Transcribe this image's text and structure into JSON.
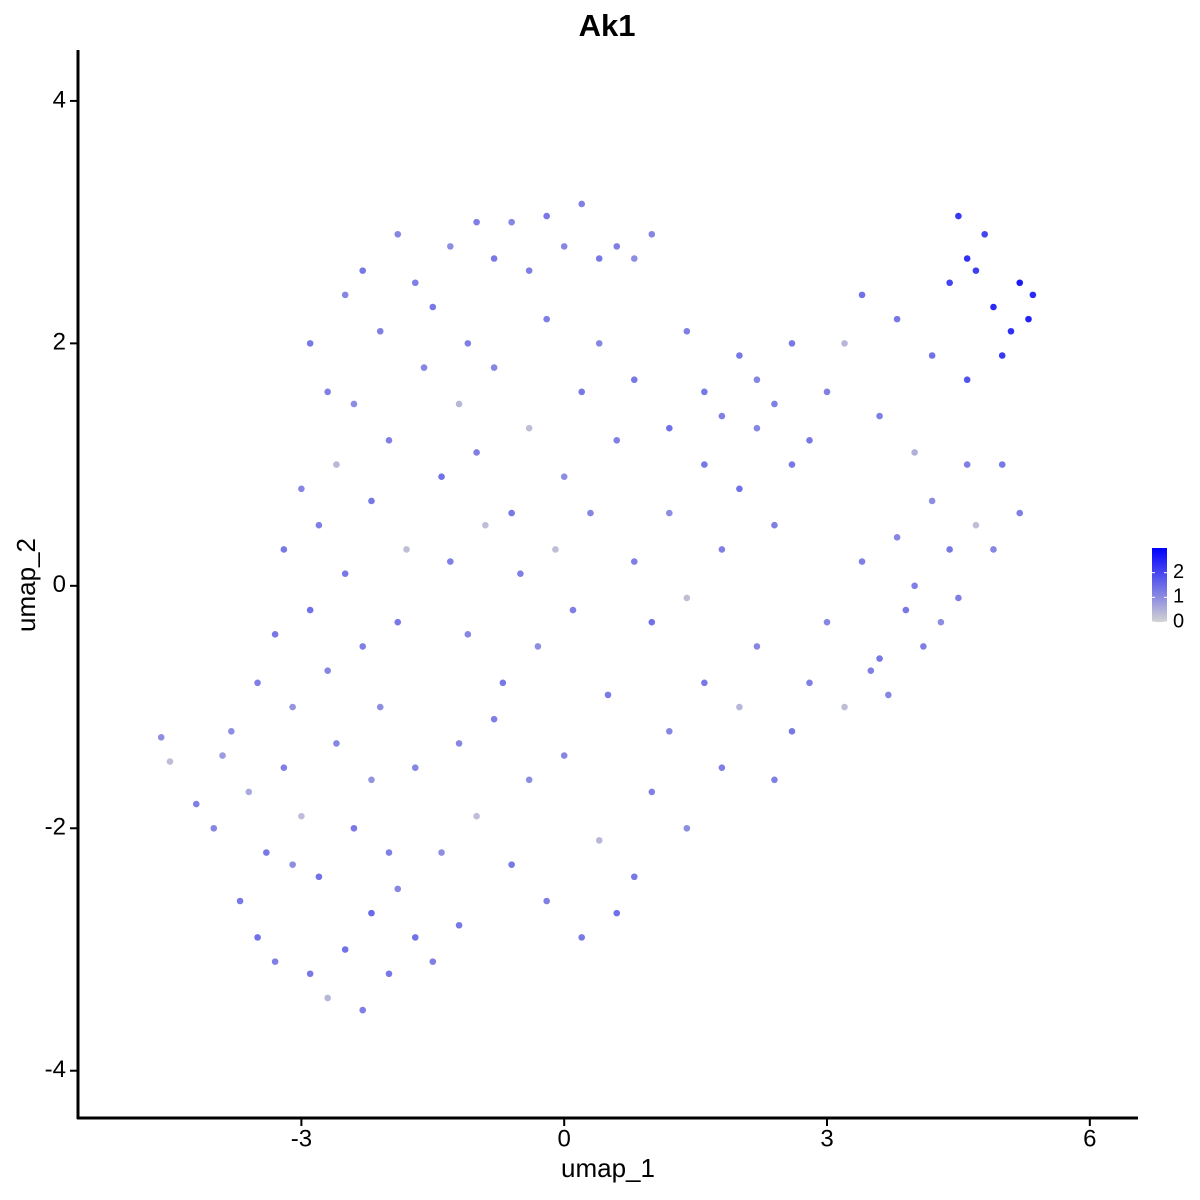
{
  "chart_data": {
    "type": "scatter",
    "title": "Ak1",
    "x_label": "umap_1",
    "y_label": "umap_2",
    "xlim": [
      -5.55,
      6.55
    ],
    "ylim": [
      -4.39,
      4.42
    ],
    "xticks": [
      -3,
      0,
      3,
      6
    ],
    "yticks": [
      -4,
      -2,
      0,
      2,
      4
    ],
    "grid": false,
    "color_low": "#d3d3d3",
    "color_high": "#0000ff",
    "colorlim": [
      0,
      3
    ],
    "colorticks": [
      0,
      1,
      2
    ],
    "x": [
      -4.6,
      -4.5,
      -4.2,
      -4.0,
      -3.9,
      -3.7,
      -3.5,
      -3.3,
      -3.1,
      -2.9,
      -2.7,
      -2.5,
      -2.3,
      -2.2,
      -2.0,
      -1.9,
      -1.7,
      -1.5,
      -1.4,
      -1.2,
      -3.8,
      -3.6,
      -3.4,
      -3.2,
      -3.0,
      -2.8,
      -2.6,
      -2.4,
      -2.2,
      -2.0,
      -3.5,
      -3.3,
      -3.1,
      -2.9,
      -2.7,
      -2.5,
      -2.3,
      -2.1,
      -1.9,
      -1.7,
      -3.2,
      -3.0,
      -2.8,
      -2.6,
      -2.4,
      -2.2,
      -2.0,
      -1.8,
      -1.6,
      -1.4,
      -2.9,
      -2.7,
      -2.5,
      -2.3,
      -2.1,
      -1.9,
      -1.7,
      -1.5,
      -1.3,
      -1.1,
      -1.0,
      -0.8,
      -0.6,
      -0.4,
      -0.2,
      0.0,
      0.2,
      0.4,
      0.6,
      0.8,
      -1.2,
      -1.0,
      -0.8,
      -0.6,
      -0.4,
      -0.2,
      0.0,
      0.2,
      0.4,
      0.6,
      -1.3,
      -1.1,
      -0.9,
      -0.7,
      -0.5,
      -0.3,
      -0.1,
      0.1,
      0.3,
      0.5,
      -1.2,
      -1.0,
      -0.8,
      -0.6,
      -0.4,
      -0.2,
      0.0,
      0.2,
      0.4,
      0.6,
      0.8,
      1.0,
      1.2,
      1.4,
      1.6,
      1.8,
      2.0,
      2.2,
      2.4,
      2.6,
      0.8,
      1.0,
      1.2,
      1.4,
      1.6,
      1.8,
      2.0,
      2.2,
      2.4,
      2.6,
      0.8,
      1.0,
      1.2,
      1.4,
      1.6,
      1.8,
      2.0,
      2.2,
      2.4,
      2.6,
      2.8,
      3.0,
      3.2,
      3.4,
      3.6,
      3.8,
      4.0,
      4.2,
      4.4,
      4.6,
      2.8,
      3.0,
      3.2,
      3.4,
      3.6,
      3.8,
      4.0,
      4.2,
      4.4,
      4.6,
      4.5,
      4.6,
      4.7,
      4.8,
      4.9,
      5.0,
      5.1,
      5.2,
      5.3,
      5.35,
      5.0,
      5.2,
      4.9,
      4.7,
      4.5,
      4.3,
      4.1,
      3.9,
      3.7,
      3.5
    ],
    "y": [
      -1.25,
      -1.45,
      -1.8,
      -2.0,
      -1.4,
      -2.6,
      -2.9,
      -3.1,
      -2.3,
      -3.2,
      -3.4,
      -3.0,
      -3.5,
      -2.7,
      -3.2,
      -2.5,
      -2.9,
      -3.1,
      -2.2,
      -2.8,
      -1.2,
      -1.7,
      -2.2,
      -1.5,
      -1.9,
      -2.4,
      -1.3,
      -2.0,
      -1.6,
      -2.2,
      -0.8,
      -0.4,
      -1.0,
      -0.2,
      -0.7,
      0.1,
      -0.5,
      -1.0,
      -0.3,
      -1.5,
      0.3,
      0.8,
      0.5,
      1.0,
      1.5,
      0.7,
      1.2,
      0.3,
      1.8,
      0.9,
      2.0,
      1.6,
      2.4,
      2.6,
      2.1,
      2.9,
      2.5,
      2.3,
      2.8,
      2.0,
      3.0,
      2.7,
      3.0,
      2.6,
      3.05,
      2.8,
      3.15,
      2.7,
      2.8,
      2.7,
      1.5,
      1.1,
      1.8,
      0.6,
      1.3,
      2.2,
      0.9,
      1.6,
      2.0,
      1.2,
      0.2,
      -0.4,
      0.5,
      -0.8,
      0.1,
      -0.5,
      0.3,
      -0.2,
      0.6,
      -0.9,
      -1.3,
      -1.9,
      -1.1,
      -2.3,
      -1.6,
      -2.6,
      -1.4,
      -2.9,
      -2.1,
      -2.7,
      -2.4,
      -1.7,
      -1.2,
      -2.0,
      -0.8,
      -1.5,
      -1.0,
      -0.5,
      -1.6,
      -1.2,
      0.2,
      -0.3,
      0.6,
      -0.1,
      1.0,
      0.3,
      0.8,
      1.3,
      0.5,
      1.0,
      1.7,
      2.9,
      1.3,
      2.1,
      1.6,
      1.4,
      1.9,
      1.7,
      1.5,
      2.0,
      -0.8,
      -0.3,
      -1.0,
      0.2,
      -0.6,
      0.4,
      0.0,
      0.7,
      0.3,
      1.0,
      1.2,
      1.6,
      2.0,
      2.4,
      1.4,
      2.2,
      1.1,
      1.9,
      2.5,
      1.7,
      3.05,
      2.7,
      2.6,
      2.9,
      2.3,
      1.9,
      2.1,
      2.5,
      2.2,
      2.4,
      1.0,
      0.6,
      0.3,
      0.5,
      -0.1,
      -0.3,
      -0.5,
      -0.2,
      -0.9,
      -0.7
    ],
    "expression": [
      1.0,
      0.3,
      1.2,
      1.1,
      0.8,
      1.3,
      1.4,
      1.2,
      1.0,
      1.3,
      0.4,
      1.4,
      1.2,
      1.5,
      1.3,
      1.1,
      1.4,
      1.2,
      1.0,
      1.3,
      1.0,
      0.6,
      1.3,
      1.2,
      0.3,
      1.4,
      1.1,
      1.3,
      0.9,
      1.2,
      1.2,
      1.3,
      0.9,
      1.4,
      1.1,
      1.3,
      1.2,
      1.0,
      1.3,
      1.1,
      1.3,
      1.1,
      1.2,
      0.4,
      1.0,
      1.3,
      1.2,
      0.3,
      1.1,
      1.4,
      1.3,
      1.2,
      1.1,
      1.3,
      1.2,
      1.1,
      1.2,
      1.3,
      1.0,
      1.2,
      1.2,
      1.3,
      1.1,
      1.2,
      1.3,
      1.1,
      1.2,
      1.3,
      1.2,
      1.0,
      0.4,
      1.2,
      1.1,
      1.3,
      0.3,
      1.2,
      1.0,
      1.3,
      1.1,
      1.2,
      1.2,
      1.1,
      0.3,
      1.3,
      1.2,
      1.0,
      0.3,
      1.2,
      1.1,
      1.3,
      1.1,
      0.3,
      1.2,
      1.3,
      1.0,
      1.2,
      1.1,
      1.3,
      0.4,
      1.4,
      1.3,
      1.2,
      1.1,
      1.0,
      1.3,
      1.2,
      0.4,
      1.1,
      1.2,
      1.3,
      1.2,
      1.4,
      1.0,
      0.3,
      1.3,
      1.2,
      1.4,
      1.1,
      1.2,
      1.3,
      1.3,
      1.1,
      1.4,
      1.2,
      1.3,
      1.2,
      1.3,
      1.1,
      1.2,
      1.3,
      1.2,
      1.1,
      0.3,
      1.2,
      1.3,
      1.1,
      1.2,
      1.0,
      1.3,
      1.2,
      1.3,
      1.2,
      0.4,
      1.4,
      1.2,
      1.3,
      0.5,
      1.4,
      2.0,
      1.8,
      2.2,
      2.3,
      2.1,
      2.0,
      2.4,
      2.2,
      2.3,
      2.6,
      2.5,
      2.4,
      1.3,
      1.2,
      1.1,
      0.3,
      1.2,
      1.0,
      1.2,
      1.3,
      1.1,
      1.2
    ]
  }
}
